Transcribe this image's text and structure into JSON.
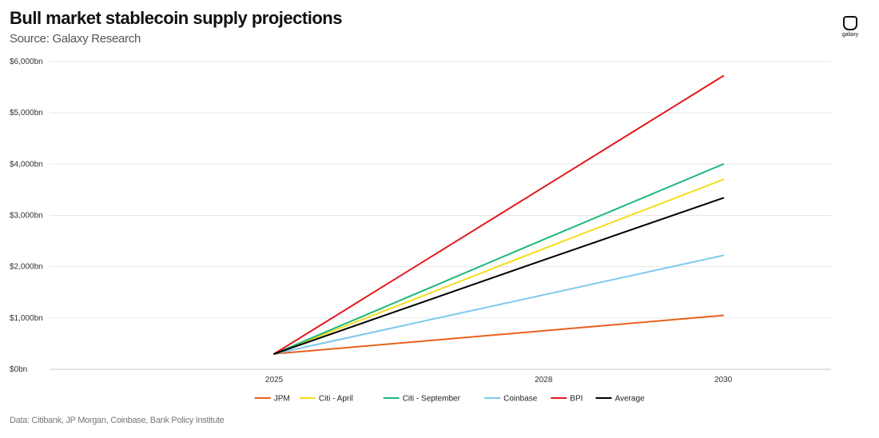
{
  "header": {
    "title": "Bull market stablecoin supply projections",
    "subtitle": "Source: Galaxy Research"
  },
  "logo": {
    "text": "galaxy",
    "icon": "galaxy-logo-icon"
  },
  "footer": {
    "text": "Data: Citibank, JP Morgan, Coinbase, Bank Policy Institute"
  },
  "chart_data": {
    "type": "line",
    "title": "Bull market stablecoin supply projections",
    "subtitle": "Source: Galaxy Research",
    "x": [
      2025,
      2028,
      2030
    ],
    "x_tick_labels": [
      "2025",
      "2028",
      "2030"
    ],
    "xlim": [
      2022.5,
      2031.2
    ],
    "ylim": [
      0,
      6000
    ],
    "y_ticks": [
      0,
      1000,
      2000,
      3000,
      4000,
      5000,
      6000
    ],
    "y_tick_labels": [
      "$0bn",
      "$1,000bn",
      "$2,000bn",
      "$3,000bn",
      "$4,000bn",
      "$5,000bn",
      "$6,000bn"
    ],
    "grid": true,
    "legend_position": "bottom",
    "series": [
      {
        "name": "JPM",
        "color": "#e8601c",
        "values": [
          300,
          750,
          1050
        ]
      },
      {
        "name": "Citi - April",
        "color": "#f5dc1a",
        "values": [
          300,
          2350,
          3700
        ]
      },
      {
        "name": "Citi - September",
        "color": "#1db97a",
        "values": [
          300,
          2530,
          4000
        ]
      },
      {
        "name": "Coinbase",
        "color": "#7ec8ee",
        "values": [
          300,
          1450,
          2220
        ]
      },
      {
        "name": "BPI",
        "color": "#e3191b",
        "values": [
          300,
          3550,
          5720
        ]
      },
      {
        "name": "Average",
        "color": "#000000",
        "values": [
          300,
          2130,
          3340
        ]
      }
    ]
  }
}
